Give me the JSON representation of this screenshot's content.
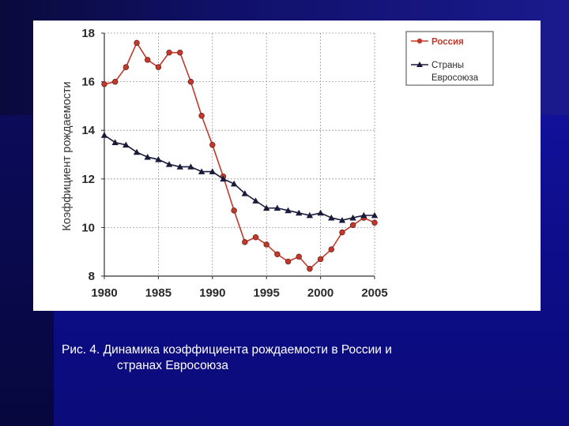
{
  "caption": {
    "line1": "Рис. 4. Динамика коэффициента рождаемости в России и",
    "line2": "странах Евросоюза"
  },
  "chart_data": {
    "type": "line",
    "title": "",
    "xlabel": "",
    "ylabel": "Коэффициент рождаемости",
    "xlim": [
      1980,
      2005
    ],
    "ylim": [
      8,
      18
    ],
    "x_ticks": [
      1980,
      1985,
      1990,
      1995,
      2000,
      2005
    ],
    "y_ticks": [
      8,
      10,
      12,
      14,
      16,
      18
    ],
    "grid": true,
    "legend_position": "top-right",
    "series": [
      {
        "name": "Россия",
        "color": "#c0392b",
        "marker": "circle",
        "x": [
          1980,
          1981,
          1982,
          1983,
          1984,
          1985,
          1986,
          1987,
          1988,
          1989,
          1990,
          1991,
          1992,
          1993,
          1994,
          1995,
          1996,
          1997,
          1998,
          1999,
          2000,
          2001,
          2002,
          2003,
          2004,
          2005
        ],
        "y": [
          15.9,
          16.0,
          16.6,
          17.6,
          16.9,
          16.6,
          17.2,
          17.2,
          16.0,
          14.6,
          13.4,
          12.1,
          10.7,
          9.4,
          9.6,
          9.3,
          8.9,
          8.6,
          8.8,
          8.3,
          8.7,
          9.1,
          9.8,
          10.1,
          10.4,
          10.2
        ]
      },
      {
        "name": "Страны Евросоюза",
        "color": "#1a1a3a",
        "marker": "triangle",
        "x": [
          1980,
          1981,
          1982,
          1983,
          1984,
          1985,
          1986,
          1987,
          1988,
          1989,
          1990,
          1991,
          1992,
          1993,
          1994,
          1995,
          1996,
          1997,
          1998,
          1999,
          2000,
          2001,
          2002,
          2003,
          2004,
          2005
        ],
        "y": [
          13.8,
          13.5,
          13.4,
          13.1,
          12.9,
          12.8,
          12.6,
          12.5,
          12.5,
          12.3,
          12.3,
          12.0,
          11.8,
          11.4,
          11.1,
          10.8,
          10.8,
          10.7,
          10.6,
          10.5,
          10.6,
          10.4,
          10.3,
          10.4,
          10.5,
          10.5
        ]
      }
    ]
  }
}
